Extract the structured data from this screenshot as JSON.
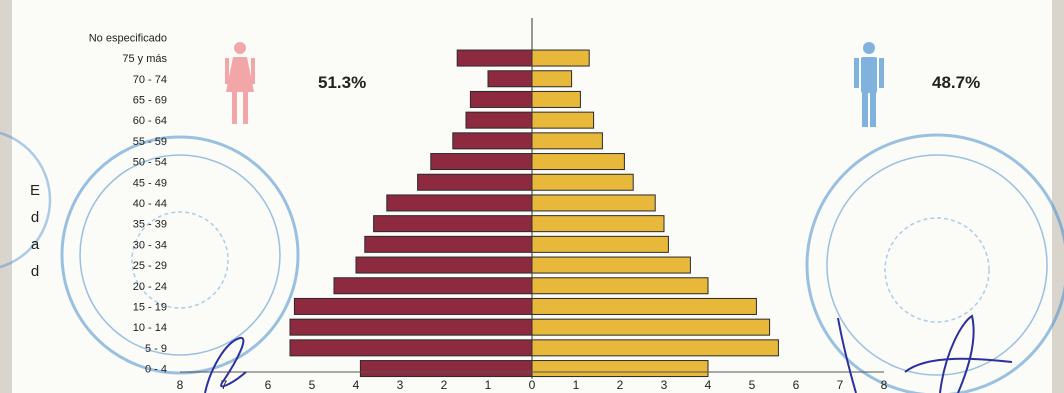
{
  "chart_data": {
    "type": "bar",
    "orientation": "horizontal",
    "layout": "population-pyramid",
    "categories": [
      "No especificado",
      "75 y más",
      "70 - 74",
      "65 - 69",
      "60 - 64",
      "55 - 59",
      "50 - 54",
      "45 - 49",
      "40 - 44",
      "35 - 39",
      "30 - 34",
      "25 - 29",
      "20 - 24",
      "15 - 19",
      "10 - 14",
      "5 - 9",
      "0 - 4"
    ],
    "series": [
      {
        "color": "#8e2a40",
        "side": "left",
        "values": [
          0,
          1.7,
          1.0,
          1.4,
          1.5,
          1.8,
          2.3,
          2.6,
          3.3,
          3.6,
          3.8,
          4.0,
          4.5,
          5.4,
          5.5,
          5.5,
          3.9
        ]
      },
      {
        "color": "#e8b83a",
        "side": "right",
        "values": [
          0,
          1.3,
          0.9,
          1.1,
          1.4,
          1.6,
          2.1,
          2.3,
          2.8,
          3.0,
          3.1,
          3.6,
          4.0,
          5.1,
          5.4,
          5.6,
          4.0
        ]
      }
    ],
    "xticks": [
      "8",
      "7",
      "6",
      "5",
      "4",
      "3",
      "2",
      "1",
      "0",
      "1",
      "2",
      "3",
      "4",
      "5",
      "6",
      "7",
      "8"
    ],
    "xlim": [
      -8,
      8
    ],
    "ylabel": "Edad",
    "women_share": "51.3%",
    "men_share": "48.7%",
    "legend": "icons at top-left (female) and top-right (male)"
  }
}
